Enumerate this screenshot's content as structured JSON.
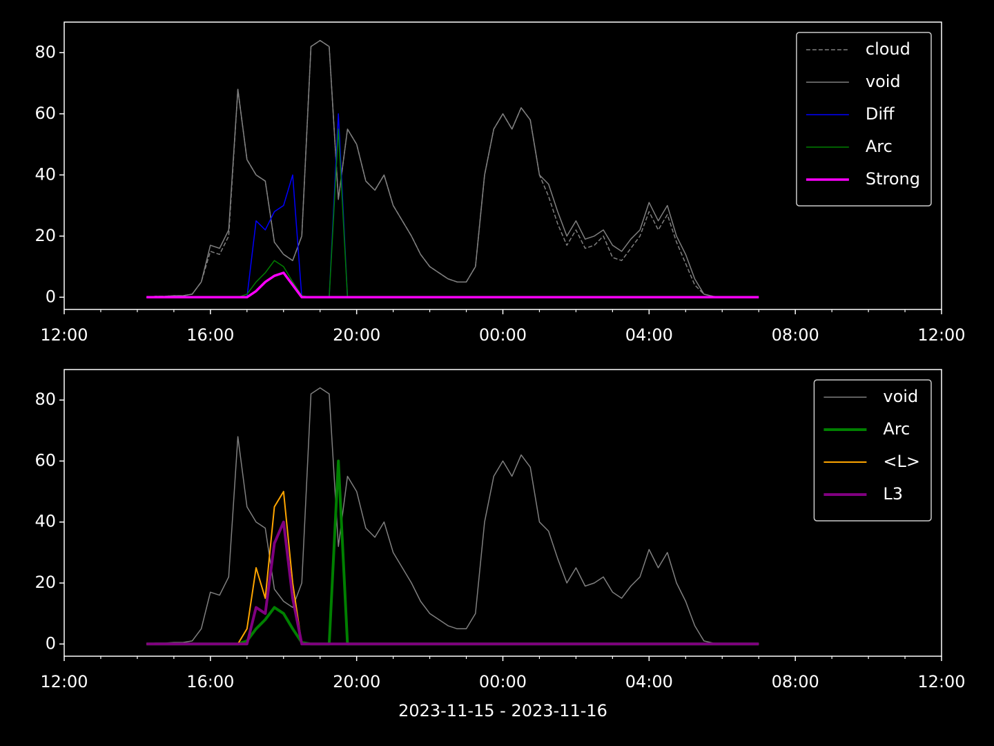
{
  "chart_data": [
    {
      "type": "line",
      "legend": "upper right",
      "xlim": [
        0,
        24
      ],
      "xticks": [
        {
          "value": 0,
          "label": "12:00"
        },
        {
          "value": 4,
          "label": "16:00"
        },
        {
          "value": 8,
          "label": "20:00"
        },
        {
          "value": 12,
          "label": "00:00"
        },
        {
          "value": 16,
          "label": "04:00"
        },
        {
          "value": 20,
          "label": "08:00"
        },
        {
          "value": 24,
          "label": "12:00"
        }
      ],
      "xminorticks": [
        1,
        2,
        3,
        5,
        6,
        7,
        9,
        10,
        11,
        13,
        14,
        15,
        17,
        18,
        19,
        21,
        22,
        23
      ],
      "ylim": [
        -4,
        90
      ],
      "yticks": [
        0,
        20,
        40,
        60,
        80
      ],
      "x": [
        2.25,
        2.5,
        2.75,
        3,
        3.25,
        3.5,
        3.75,
        4,
        4.25,
        4.5,
        4.75,
        5,
        5.25,
        5.5,
        5.75,
        6,
        6.25,
        6.5,
        6.75,
        7,
        7.25,
        7.5,
        7.75,
        8,
        8.25,
        8.5,
        8.75,
        9,
        9.25,
        9.5,
        9.75,
        10,
        10.25,
        10.5,
        10.75,
        11,
        11.25,
        11.5,
        11.75,
        12,
        12.25,
        12.5,
        12.75,
        13,
        13.25,
        13.5,
        13.75,
        14,
        14.25,
        14.5,
        14.75,
        15,
        15.25,
        15.5,
        15.75,
        16,
        16.25,
        16.5,
        16.75,
        17,
        17.25,
        17.5,
        17.75,
        18,
        18.25,
        18.5,
        18.75,
        19
      ],
      "series": [
        {
          "name": "cloud",
          "color": "#808080",
          "linestyle": "dashed",
          "linewidth": 1.5,
          "values": [
            0,
            0.3,
            0.3,
            0.5,
            0.5,
            1,
            5,
            15,
            14,
            20,
            68,
            45,
            40,
            38,
            18,
            14,
            12,
            20,
            82,
            84,
            82,
            32,
            55,
            50,
            38,
            35,
            40,
            30,
            25,
            20,
            14,
            10,
            8,
            6,
            5,
            5,
            10,
            40,
            55,
            60,
            55,
            62,
            58,
            40,
            33,
            24,
            17,
            22,
            16,
            17,
            20,
            13,
            12,
            16,
            20,
            28,
            22,
            27,
            18,
            11,
            4,
            1,
            0.3,
            0,
            0,
            0,
            0,
            0
          ]
        },
        {
          "name": "void",
          "color": "#808080",
          "linestyle": "solid",
          "linewidth": 1.5,
          "values": [
            0,
            0.3,
            0.3,
            0.5,
            0.5,
            1,
            5,
            17,
            16,
            22,
            68,
            45,
            40,
            38,
            18,
            14,
            12,
            20,
            82,
            84,
            82,
            32,
            55,
            50,
            38,
            35,
            40,
            30,
            25,
            20,
            14,
            10,
            8,
            6,
            5,
            5,
            10,
            40,
            55,
            60,
            55,
            62,
            58,
            40,
            37,
            28,
            20,
            25,
            19,
            20,
            22,
            17,
            15,
            19,
            22,
            31,
            25,
            30,
            20,
            14,
            6,
            1,
            0.3,
            0,
            0,
            0,
            0,
            0
          ]
        },
        {
          "name": "Diff",
          "color": "#0000ff",
          "linestyle": "solid",
          "linewidth": 1.5,
          "values": [
            0,
            0,
            0,
            0,
            0,
            0,
            0,
            0,
            0,
            0,
            0,
            0,
            25,
            22,
            28,
            30,
            40,
            0,
            0,
            0,
            0,
            60,
            0,
            0,
            0,
            0,
            0,
            0,
            0,
            0,
            0,
            0,
            0,
            0,
            0,
            0,
            0,
            0,
            0,
            0,
            0,
            0,
            0,
            0,
            0,
            0,
            0,
            0,
            0,
            0,
            0,
            0,
            0,
            0,
            0,
            0,
            0,
            0,
            0,
            0,
            0,
            0,
            0,
            0,
            0,
            0,
            0,
            0
          ]
        },
        {
          "name": "Arc",
          "color": "#008000",
          "linestyle": "solid",
          "linewidth": 1.5,
          "values": [
            0,
            0,
            0,
            0,
            0,
            0,
            0,
            0,
            0,
            0,
            0,
            1,
            5,
            8,
            12,
            10,
            5,
            0.5,
            0,
            0,
            0,
            55,
            0,
            0,
            0,
            0,
            0,
            0,
            0,
            0,
            0,
            0,
            0,
            0,
            0,
            0,
            0,
            0,
            0,
            0,
            0,
            0,
            0,
            0,
            0,
            0,
            0,
            0,
            0,
            0,
            0,
            0,
            0,
            0,
            0,
            0,
            0,
            0,
            0,
            0,
            0,
            0,
            0,
            0,
            0,
            0,
            0,
            0
          ]
        },
        {
          "name": "Strong",
          "color": "#ff00ff",
          "linestyle": "solid",
          "linewidth": 3.5,
          "values": [
            0,
            0,
            0,
            0,
            0,
            0,
            0,
            0,
            0,
            0,
            0,
            0,
            2,
            5,
            7,
            8,
            4,
            0,
            0,
            0,
            0,
            0,
            0,
            0,
            0,
            0,
            0,
            0,
            0,
            0,
            0,
            0,
            0,
            0,
            0,
            0,
            0,
            0,
            0,
            0,
            0,
            0,
            0,
            0,
            0,
            0,
            0,
            0,
            0,
            0,
            0,
            0,
            0,
            0,
            0,
            0,
            0,
            0,
            0,
            0,
            0,
            0,
            0,
            0,
            0,
            0,
            0,
            0
          ]
        }
      ]
    },
    {
      "type": "line",
      "legend": "upper right",
      "xlabel": "2023-11-15 - 2023-11-16",
      "xlim": [
        0,
        24
      ],
      "xticks": [
        {
          "value": 0,
          "label": "12:00"
        },
        {
          "value": 4,
          "label": "16:00"
        },
        {
          "value": 8,
          "label": "20:00"
        },
        {
          "value": 12,
          "label": "00:00"
        },
        {
          "value": 16,
          "label": "04:00"
        },
        {
          "value": 20,
          "label": "08:00"
        },
        {
          "value": 24,
          "label": "12:00"
        }
      ],
      "xminorticks": [
        1,
        2,
        3,
        5,
        6,
        7,
        9,
        10,
        11,
        13,
        14,
        15,
        17,
        18,
        19,
        21,
        22,
        23
      ],
      "ylim": [
        -4,
        90
      ],
      "yticks": [
        0,
        20,
        40,
        60,
        80
      ],
      "x": [
        2.25,
        2.5,
        2.75,
        3,
        3.25,
        3.5,
        3.75,
        4,
        4.25,
        4.5,
        4.75,
        5,
        5.25,
        5.5,
        5.75,
        6,
        6.25,
        6.5,
        6.75,
        7,
        7.25,
        7.5,
        7.75,
        8,
        8.25,
        8.5,
        8.75,
        9,
        9.25,
        9.5,
        9.75,
        10,
        10.25,
        10.5,
        10.75,
        11,
        11.25,
        11.5,
        11.75,
        12,
        12.25,
        12.5,
        12.75,
        13,
        13.25,
        13.5,
        13.75,
        14,
        14.25,
        14.5,
        14.75,
        15,
        15.25,
        15.5,
        15.75,
        16,
        16.25,
        16.5,
        16.75,
        17,
        17.25,
        17.5,
        17.75,
        18,
        18.25,
        18.5,
        18.75,
        19
      ],
      "series": [
        {
          "name": "void",
          "color": "#808080",
          "linestyle": "solid",
          "linewidth": 1.5,
          "values": [
            0,
            0.3,
            0.3,
            0.5,
            0.5,
            1,
            5,
            17,
            16,
            22,
            68,
            45,
            40,
            38,
            18,
            14,
            12,
            20,
            82,
            84,
            82,
            32,
            55,
            50,
            38,
            35,
            40,
            30,
            25,
            20,
            14,
            10,
            8,
            6,
            5,
            5,
            10,
            40,
            55,
            60,
            55,
            62,
            58,
            40,
            37,
            28,
            20,
            25,
            19,
            20,
            22,
            17,
            15,
            19,
            22,
            31,
            25,
            30,
            20,
            14,
            6,
            1,
            0.3,
            0,
            0,
            0,
            0,
            0
          ]
        },
        {
          "name": "Arc",
          "color": "#008000",
          "linestyle": "solid",
          "linewidth": 4,
          "values": [
            0,
            0,
            0,
            0,
            0,
            0,
            0,
            0,
            0,
            0,
            0,
            1,
            5,
            8,
            12,
            10,
            5,
            0.5,
            0,
            0,
            0,
            60,
            0,
            0,
            0,
            0,
            0,
            0,
            0,
            0,
            0,
            0,
            0,
            0,
            0,
            0,
            0,
            0,
            0,
            0,
            0,
            0,
            0,
            0,
            0,
            0,
            0,
            0,
            0,
            0,
            0,
            0,
            0,
            0,
            0,
            0,
            0,
            0,
            0,
            0,
            0,
            0,
            0,
            0,
            0,
            0,
            0,
            0
          ]
        },
        {
          "name": "<L>",
          "color": "#ffa500",
          "linestyle": "solid",
          "linewidth": 2,
          "values": [
            0,
            0,
            0,
            0,
            0,
            0,
            0,
            0,
            0,
            0,
            0,
            5,
            25,
            15,
            45,
            50,
            20,
            0,
            0,
            0,
            0,
            0,
            0,
            0,
            0,
            0,
            0,
            0,
            0,
            0,
            0,
            0,
            0,
            0,
            0,
            0,
            0,
            0,
            0,
            0,
            0,
            0,
            0,
            0,
            0,
            0,
            0,
            0,
            0,
            0,
            0,
            0,
            0,
            0,
            0,
            0,
            0,
            0,
            0,
            0,
            0,
            0,
            0,
            0,
            0,
            0,
            0,
            0
          ]
        },
        {
          "name": "L3",
          "color": "#800080",
          "linestyle": "solid",
          "linewidth": 4,
          "values": [
            0,
            0,
            0,
            0,
            0,
            0,
            0,
            0,
            0,
            0,
            0,
            0,
            12,
            10,
            33,
            40,
            15,
            0,
            0,
            0,
            0,
            0,
            0,
            0,
            0,
            0,
            0,
            0,
            0,
            0,
            0,
            0,
            0,
            0,
            0,
            0,
            0,
            0,
            0,
            0,
            0,
            0,
            0,
            0,
            0,
            0,
            0,
            0,
            0,
            0,
            0,
            0,
            0,
            0,
            0,
            0,
            0,
            0,
            0,
            0,
            0,
            0,
            0,
            0,
            0,
            0,
            0,
            0
          ]
        }
      ]
    }
  ]
}
